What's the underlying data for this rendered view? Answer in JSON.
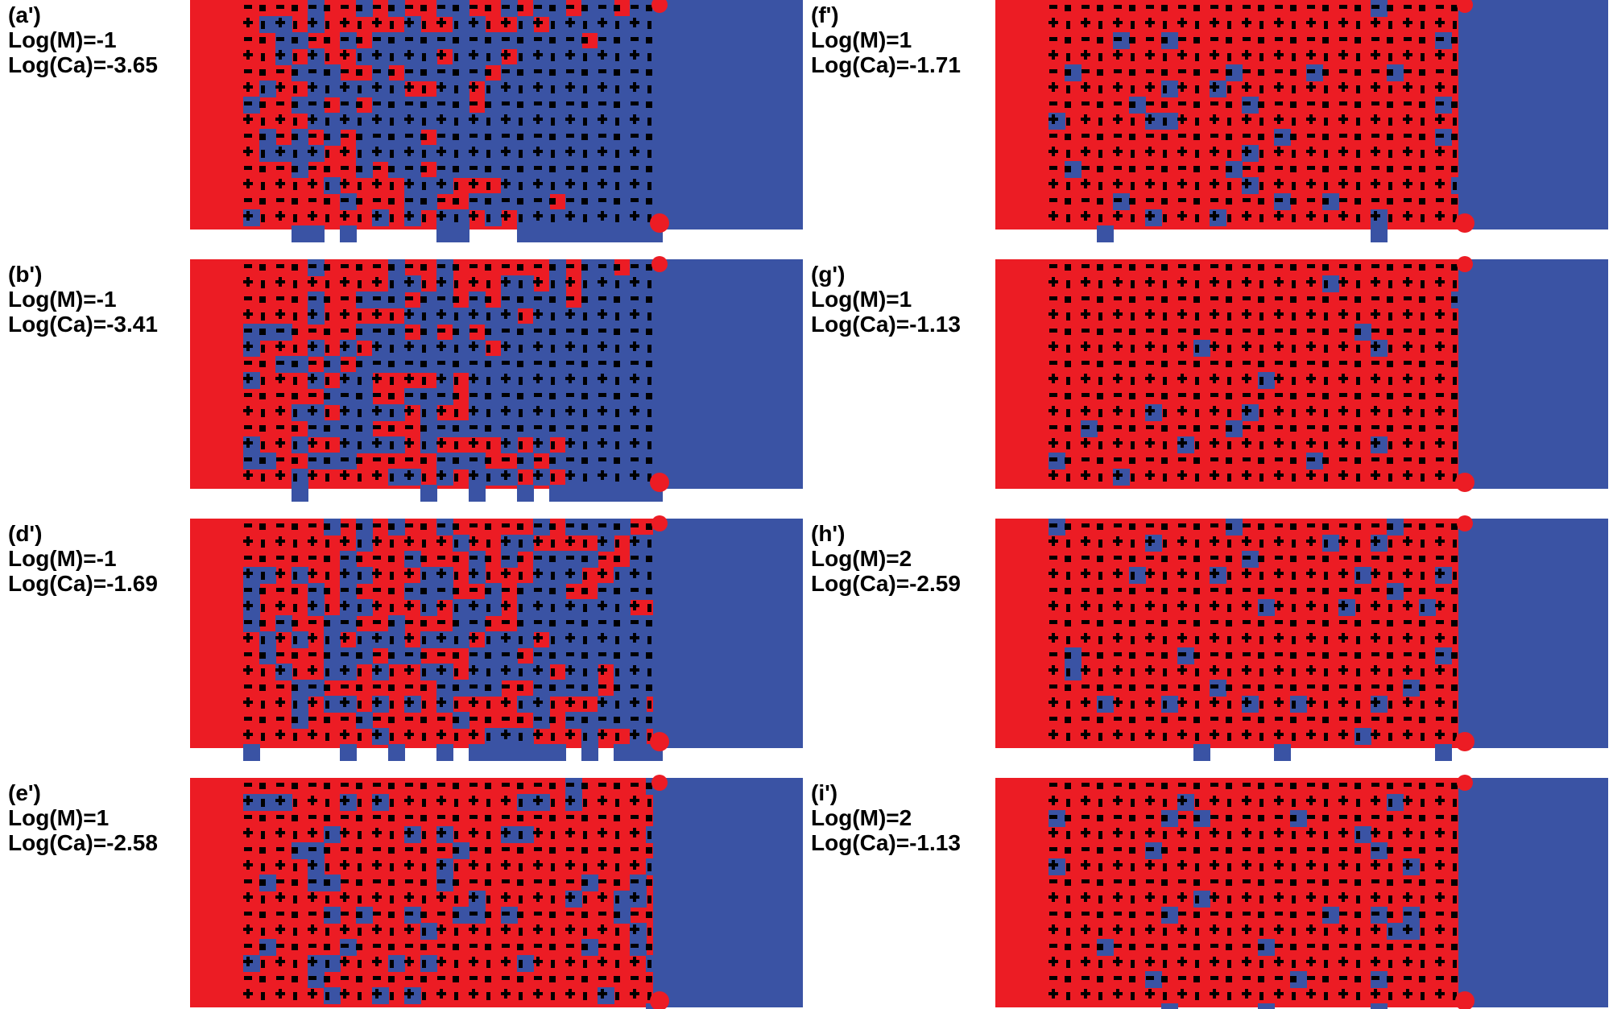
{
  "panels": [
    {
      "label": "(a')",
      "log_m": "Log(M)=-1",
      "log_ca": "Log(Ca)=-3.65"
    },
    {
      "label": "(b')",
      "log_m": "Log(M)=-1",
      "log_ca": "Log(Ca)=-3.41"
    },
    {
      "label": "(d')",
      "log_m": "Log(M)=-1",
      "log_ca": "Log(Ca)=-1.69"
    },
    {
      "label": "(e')",
      "log_m": "Log(M)=1",
      "log_ca": "Log(Ca)=-2.58"
    },
    {
      "label": "(f')",
      "log_m": "Log(M)=1",
      "log_ca": "Log(Ca)=-1.71"
    },
    {
      "label": "(g')",
      "log_m": "Log(M)=1",
      "log_ca": "Log(Ca)=-1.13"
    },
    {
      "label": "(h')",
      "log_m": "Log(M)=2",
      "log_ca": "Log(Ca)=-2.59"
    },
    {
      "label": "(i')",
      "log_m": "Log(M)=2",
      "log_ca": "Log(Ca)=-1.13"
    }
  ]
}
